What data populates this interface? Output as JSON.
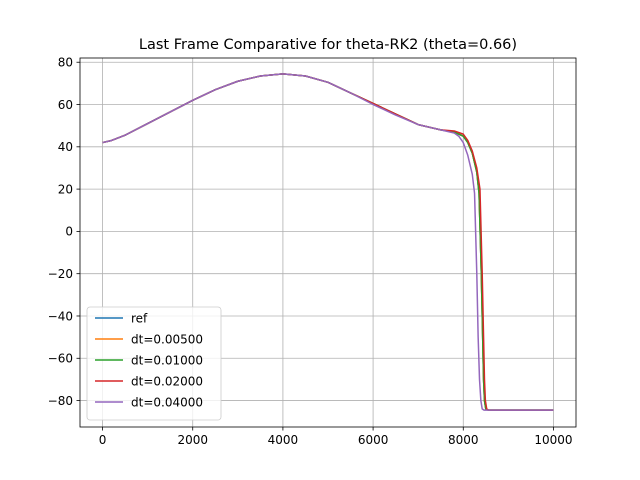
{
  "chart_data": {
    "type": "line",
    "title": "Last Frame Comparative for theta-RK2 (theta=0.66)",
    "xlabel": "",
    "ylabel": "",
    "xlim": [
      -500,
      10500
    ],
    "ylim": [
      -92.5,
      82
    ],
    "xticks": [
      0,
      2000,
      4000,
      6000,
      8000,
      10000
    ],
    "yticks": [
      -80,
      -60,
      -40,
      -20,
      0,
      20,
      40,
      60,
      80
    ],
    "grid": true,
    "legend": "lower-left",
    "series": [
      {
        "name": "ref",
        "color": "#1f77b4",
        "x": [
          0,
          200,
          500,
          1000,
          1500,
          2000,
          2500,
          3000,
          3500,
          4000,
          4500,
          5000,
          5500,
          6000,
          6500,
          7000,
          7500,
          7800,
          8000,
          8100,
          8200,
          8300,
          8350,
          8400,
          8430,
          8450,
          8470,
          8500,
          8550,
          8600,
          9000,
          10000
        ],
        "y": [
          42,
          43,
          45.5,
          51,
          56.5,
          62,
          67,
          71,
          73.5,
          74.5,
          73.5,
          70.5,
          65.5,
          60.5,
          55.5,
          50.5,
          48,
          47,
          45,
          42,
          37,
          28,
          18,
          -20,
          -50,
          -70,
          -80,
          -84,
          -84.5,
          -84.5,
          -84.5,
          -84.5
        ]
      },
      {
        "name": "dt=0.00500",
        "color": "#ff7f0e",
        "x": [
          0,
          200,
          500,
          1000,
          1500,
          2000,
          2500,
          3000,
          3500,
          4000,
          4500,
          5000,
          5500,
          6000,
          6500,
          7000,
          7500,
          7800,
          8000,
          8100,
          8200,
          8300,
          8350,
          8400,
          8430,
          8450,
          8470,
          8500,
          8550,
          8600,
          9000,
          10000
        ],
        "y": [
          42,
          43,
          45.5,
          51,
          56.5,
          62,
          67,
          71,
          73.5,
          74.5,
          73.5,
          70.5,
          65.5,
          60.5,
          55.5,
          50.5,
          48,
          47,
          45,
          42,
          37,
          28,
          18,
          -20,
          -50,
          -70,
          -80,
          -84,
          -84.5,
          -84.5,
          -84.5,
          -84.5
        ]
      },
      {
        "name": "dt=0.01000",
        "color": "#2ca02c",
        "x": [
          0,
          200,
          500,
          1000,
          1500,
          2000,
          2500,
          3000,
          3500,
          4000,
          4500,
          5000,
          5500,
          6000,
          6500,
          7000,
          7500,
          7800,
          8000,
          8100,
          8200,
          8300,
          8350,
          8400,
          8430,
          8450,
          8470,
          8500,
          8550,
          8600,
          9000,
          10000
        ],
        "y": [
          42,
          43,
          45.5,
          51,
          56.5,
          62,
          67,
          71,
          73.5,
          74.5,
          73.5,
          70.5,
          65.5,
          60.5,
          55.5,
          50.5,
          48,
          47,
          45,
          42,
          37,
          28,
          18,
          -20,
          -50,
          -70,
          -80,
          -84,
          -84.5,
          -84.5,
          -84.5,
          -84.5
        ]
      },
      {
        "name": "dt=0.02000",
        "color": "#d62728",
        "x": [
          0,
          200,
          500,
          1000,
          1500,
          2000,
          2500,
          3000,
          3500,
          4000,
          4500,
          5000,
          5500,
          6000,
          6500,
          7000,
          7500,
          7800,
          8000,
          8100,
          8200,
          8300,
          8370,
          8420,
          8450,
          8470,
          8490,
          8520,
          8560,
          8600,
          9000,
          10000
        ],
        "y": [
          42,
          43,
          45.5,
          51,
          56.5,
          62,
          67,
          71,
          73.5,
          74.5,
          73.5,
          70.5,
          65.5,
          60.5,
          55.5,
          50.5,
          48,
          47.5,
          46,
          43,
          38,
          30,
          20,
          -20,
          -50,
          -70,
          -80,
          -84,
          -84.5,
          -84.5,
          -84.5,
          -84.5
        ]
      },
      {
        "name": "dt=0.04000",
        "color": "#9467bd",
        "x": [
          0,
          200,
          500,
          1000,
          1500,
          2000,
          2500,
          3000,
          3500,
          4000,
          4500,
          5000,
          5500,
          6000,
          6500,
          7000,
          7500,
          7800,
          7900,
          8000,
          8100,
          8200,
          8250,
          8300,
          8330,
          8360,
          8390,
          8420,
          8460,
          8500,
          9000,
          10000
        ],
        "y": [
          42,
          43,
          45.5,
          51,
          56.5,
          62,
          67,
          71,
          73.5,
          74.5,
          73.5,
          70.5,
          65.5,
          60,
          55,
          50.5,
          48,
          46.5,
          45,
          42,
          36,
          27,
          18,
          -20,
          -50,
          -70,
          -80,
          -84,
          -84.5,
          -84.5,
          -84.5,
          -84.5
        ]
      }
    ]
  }
}
